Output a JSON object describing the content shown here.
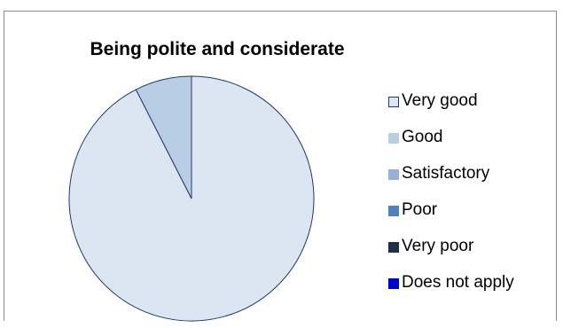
{
  "chart_data": {
    "type": "pie",
    "title": "Being polite and considerate",
    "categories": [
      "Very good",
      "Good",
      "Satisfactory",
      "Poor",
      "Very poor",
      "Does not apply"
    ],
    "values": [
      92.5,
      7.5,
      0,
      0,
      0,
      0
    ],
    "colors": [
      "#dce6f2",
      "#b9cde5",
      "#95b3d7",
      "#4f81bd",
      "#1f2f4a",
      "#0000cc"
    ],
    "slice_border_color": "#1f3864",
    "legend_position": "right"
  }
}
